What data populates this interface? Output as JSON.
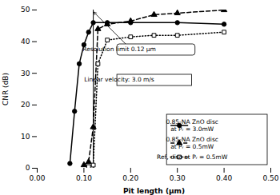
{
  "chart_data": {
    "type": "line",
    "xlabel": "Pit length (μm)",
    "ylabel": "CNR (dB)",
    "xlim": [
      0.0,
      0.5
    ],
    "ylim": [
      0,
      50
    ],
    "xticks": [
      {
        "value": 0.0,
        "label": "0.00"
      },
      {
        "value": 0.1,
        "label": "0.10"
      },
      {
        "value": 0.2,
        "label": "0.20"
      },
      {
        "value": 0.3,
        "label": "0.30"
      },
      {
        "value": 0.4,
        "label": "0.40"
      },
      {
        "value": 0.5,
        "label": "0.50"
      }
    ],
    "yticks": [
      0,
      10,
      20,
      30,
      40,
      50
    ],
    "grid": false,
    "legend": "lower right",
    "series": [
      {
        "name": "0.85-NA ZnO disc\nat Pᵣ = 3.0mW",
        "color": "black",
        "marker": "circle",
        "line_style": "solid",
        "x": [
          0.07,
          0.08,
          0.09,
          0.1,
          0.11,
          0.12,
          0.15,
          0.2,
          0.3,
          0.4
        ],
        "values": [
          1.5,
          18.0,
          33.0,
          39.0,
          43.0,
          46.0,
          46.0,
          46.0,
          46.0,
          45.5
        ]
      },
      {
        "name": "0.85-NA ZnO disc\nat Pᵣ = 0.5mW",
        "color": "black",
        "marker": "triangle",
        "line_style": "dashed",
        "x": [
          0.1,
          0.11,
          0.12,
          0.13,
          0.15,
          0.2,
          0.25,
          0.3,
          0.4
        ],
        "values": [
          1.0,
          2.0,
          13.0,
          44.0,
          45.5,
          46.5,
          48.5,
          49.0,
          50.0
        ]
      },
      {
        "name": "Ref, disc at Pᵣ = 0.5mW",
        "color": "black",
        "marker": "square-open",
        "line_style": "dotted",
        "x": [
          0.11,
          0.12,
          0.13,
          0.15,
          0.2,
          0.25,
          0.3,
          0.4
        ],
        "values": [
          0.5,
          1.0,
          33.0,
          40.5,
          41.5,
          42.0,
          42.0,
          43.0
        ]
      }
    ],
    "vline": 0.12,
    "annotations": [
      {
        "text": "Resolution limit 0.12 μm",
        "x": 0.12,
        "y": 49.5
      },
      {
        "text": "Linear velocity: 3.0 m/s"
      }
    ]
  }
}
